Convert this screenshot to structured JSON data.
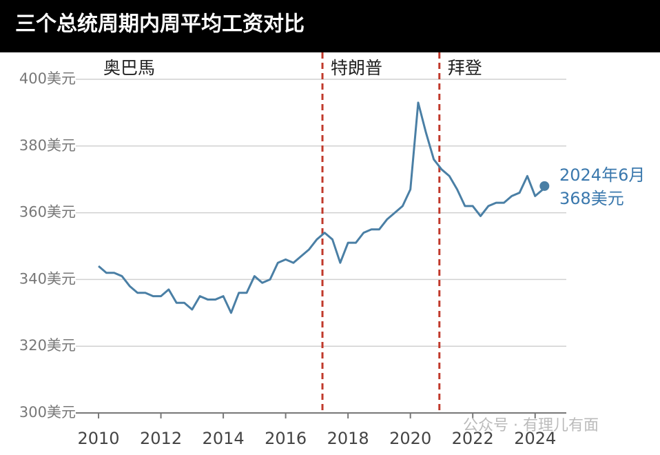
{
  "chart_data": {
    "type": "line",
    "title": "三个总统周期内周平均工资对比",
    "annotations": [
      "奥巴馬",
      "特朗普",
      "拜登"
    ],
    "dividers": [
      2017.18,
      2020.93
    ],
    "divider_color": "#c0392b",
    "x": [
      2010,
      2010.25,
      2010.5,
      2010.75,
      2011,
      2011.25,
      2011.5,
      2011.75,
      2012,
      2012.25,
      2012.5,
      2012.75,
      2013,
      2013.25,
      2013.5,
      2013.75,
      2014,
      2014.25,
      2014.5,
      2014.75,
      2015,
      2015.25,
      2015.5,
      2015.75,
      2016,
      2016.25,
      2016.5,
      2016.75,
      2017,
      2017.25,
      2017.5,
      2017.75,
      2018,
      2018.25,
      2018.5,
      2018.75,
      2019,
      2019.25,
      2019.5,
      2019.75,
      2020,
      2020.25,
      2020.5,
      2020.75,
      2021,
      2021.25,
      2021.5,
      2021.75,
      2022,
      2022.25,
      2022.5,
      2022.75,
      2023,
      2023.25,
      2023.5,
      2023.75,
      2024,
      2024.25
    ],
    "values": [
      344,
      342,
      342,
      341,
      338,
      336,
      336,
      335,
      335,
      337,
      333,
      333,
      331,
      335,
      334,
      334,
      335,
      330,
      336,
      336,
      341,
      339,
      340,
      345,
      346,
      345,
      347,
      349,
      352,
      354,
      352,
      345,
      351,
      351,
      354,
      355,
      355,
      358,
      360,
      362,
      367,
      393,
      384,
      376,
      373,
      371,
      367,
      362,
      362,
      359,
      362,
      363,
      363,
      365,
      366,
      371,
      365,
      367
    ],
    "color": "#4a7fa5",
    "highlight": {
      "x": 2024.3,
      "value": 368,
      "label": "2024年6月",
      "value_label": "368美元"
    },
    "xlim": [
      2009.27,
      2025
    ],
    "xticks": [
      2010,
      2012,
      2014,
      2016,
      2018,
      2020,
      2022,
      2024
    ],
    "ylim": [
      300,
      400
    ],
    "yticks": [
      {
        "value": 300,
        "label": "300美元"
      },
      {
        "value": 320,
        "label": "320美元"
      },
      {
        "value": 340,
        "label": "340美元"
      },
      {
        "value": 360,
        "label": "360美元"
      },
      {
        "value": 380,
        "label": "380美元"
      },
      {
        "value": 400,
        "label": "400美元"
      }
    ],
    "grid": true,
    "watermark": "公众号 · 有理儿有面"
  }
}
